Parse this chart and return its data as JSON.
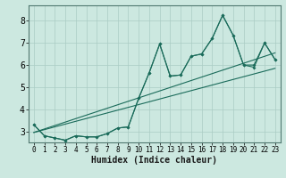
{
  "title": "",
  "xlabel": "Humidex (Indice chaleur)",
  "bg_color": "#cce8e0",
  "grid_color": "#aaccc4",
  "line_color": "#1a6b5a",
  "xlim": [
    -0.5,
    23.5
  ],
  "ylim": [
    2.5,
    8.7
  ],
  "yticks": [
    3,
    4,
    5,
    6,
    7,
    8
  ],
  "xticks": [
    0,
    1,
    2,
    3,
    4,
    5,
    6,
    7,
    8,
    9,
    10,
    11,
    12,
    13,
    14,
    15,
    16,
    17,
    18,
    19,
    20,
    21,
    22,
    23
  ],
  "series_x": [
    0,
    1,
    2,
    3,
    4,
    5,
    6,
    7,
    8,
    9,
    10,
    11,
    12,
    13,
    14,
    15,
    16,
    17,
    18,
    19,
    20,
    21,
    22,
    23
  ],
  "series1_y": [
    3.3,
    2.8,
    2.7,
    2.6,
    2.8,
    2.75,
    2.75,
    2.9,
    3.15,
    3.2,
    4.5,
    5.65,
    6.95,
    5.5,
    5.55,
    6.4,
    6.5,
    7.2,
    8.25,
    7.35,
    6.0,
    6.0,
    7.0,
    6.25
  ],
  "series2_y": [
    3.3,
    2.8,
    2.7,
    2.6,
    2.8,
    2.75,
    2.75,
    2.9,
    3.15,
    3.2,
    4.5,
    5.65,
    6.95,
    5.5,
    5.55,
    6.4,
    6.5,
    7.2,
    8.25,
    7.35,
    6.0,
    5.9,
    7.0,
    6.25
  ],
  "line1_x": [
    0,
    23
  ],
  "line1_y": [
    2.95,
    6.55
  ],
  "line2_x": [
    0,
    23
  ],
  "line2_y": [
    2.95,
    5.85
  ],
  "xlabel_fontsize": 7,
  "ytick_fontsize": 7,
  "xtick_fontsize": 5.5
}
